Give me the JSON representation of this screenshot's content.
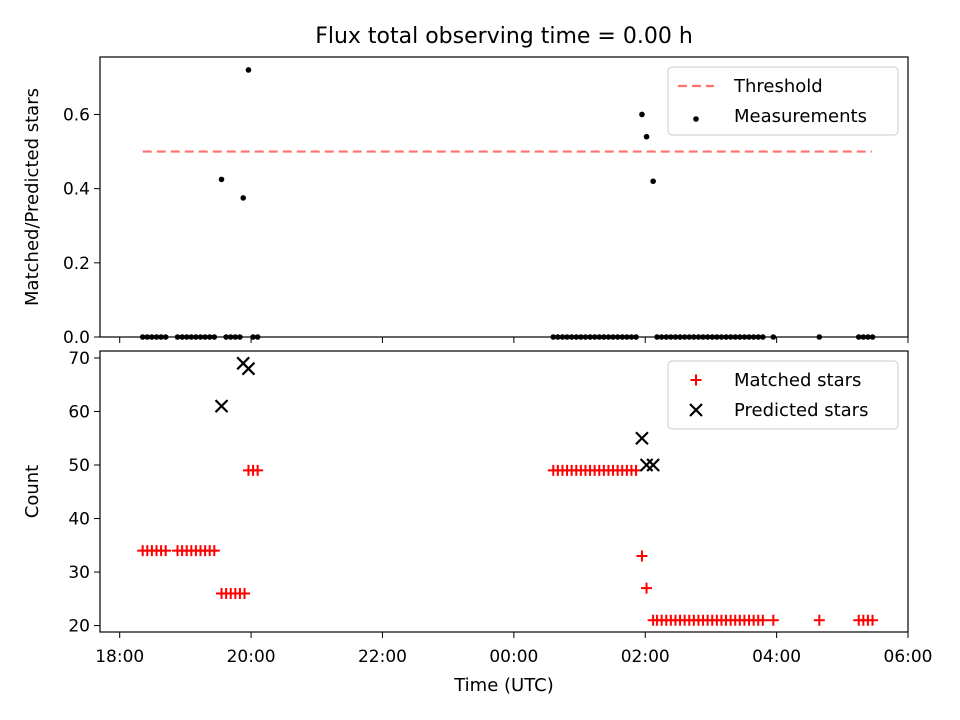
{
  "title": "Flux total observing time = 0.00 h",
  "x_axis_label": "Time (UTC)",
  "x_ticks": [
    "18:00",
    "20:00",
    "22:00",
    "00:00",
    "02:00",
    "04:00",
    "06:00"
  ],
  "x_tick_hours": [
    18,
    20,
    22,
    24,
    26,
    28,
    30
  ],
  "colors": {
    "threshold": "#ff7070",
    "measurements": "#000000",
    "matched": "#ff0000",
    "predicted": "#000000"
  },
  "chart_data": [
    {
      "type": "scatter",
      "panel": "top",
      "ylabel": "Matched/Predicted stars",
      "xlim_hours": [
        17.7,
        30.0
      ],
      "ylim": [
        0.0,
        0.755
      ],
      "y_ticks": [
        "0.0",
        "0.2",
        "0.4",
        "0.6"
      ],
      "y_tick_values": [
        0.0,
        0.2,
        0.4,
        0.6
      ],
      "legend_position": "top-right",
      "threshold": {
        "name": "Threshold",
        "value": 0.5,
        "x_range_hours": [
          18.35,
          29.45
        ],
        "style": "dashed line"
      },
      "series": [
        {
          "name": "Measurements",
          "marker": "dot",
          "points": [
            [
              18.35,
              0
            ],
            [
              18.42,
              0
            ],
            [
              18.49,
              0
            ],
            [
              18.56,
              0
            ],
            [
              18.63,
              0
            ],
            [
              18.7,
              0
            ],
            [
              18.88,
              0
            ],
            [
              18.95,
              0
            ],
            [
              19.02,
              0
            ],
            [
              19.09,
              0
            ],
            [
              19.16,
              0
            ],
            [
              19.23,
              0
            ],
            [
              19.3,
              0
            ],
            [
              19.37,
              0
            ],
            [
              19.44,
              0
            ],
            [
              19.55,
              0.425
            ],
            [
              19.62,
              0
            ],
            [
              19.69,
              0
            ],
            [
              19.76,
              0
            ],
            [
              19.83,
              0
            ],
            [
              19.88,
              0.375
            ],
            [
              19.96,
              0.72
            ],
            [
              20.03,
              0
            ],
            [
              20.1,
              0
            ],
            [
              24.6,
              0
            ],
            [
              24.67,
              0
            ],
            [
              24.74,
              0
            ],
            [
              24.81,
              0
            ],
            [
              24.88,
              0
            ],
            [
              24.95,
              0
            ],
            [
              25.02,
              0
            ],
            [
              25.09,
              0
            ],
            [
              25.16,
              0
            ],
            [
              25.23,
              0
            ],
            [
              25.3,
              0
            ],
            [
              25.37,
              0
            ],
            [
              25.44,
              0
            ],
            [
              25.51,
              0
            ],
            [
              25.58,
              0
            ],
            [
              25.65,
              0
            ],
            [
              25.72,
              0
            ],
            [
              25.79,
              0
            ],
            [
              25.86,
              0
            ],
            [
              25.95,
              0.6
            ],
            [
              26.02,
              0.54
            ],
            [
              26.12,
              0.42
            ],
            [
              26.18,
              0
            ],
            [
              26.25,
              0
            ],
            [
              26.32,
              0
            ],
            [
              26.39,
              0
            ],
            [
              26.46,
              0
            ],
            [
              26.53,
              0
            ],
            [
              26.6,
              0
            ],
            [
              26.67,
              0
            ],
            [
              26.74,
              0
            ],
            [
              26.81,
              0
            ],
            [
              26.88,
              0
            ],
            [
              26.95,
              0
            ],
            [
              27.02,
              0
            ],
            [
              27.09,
              0
            ],
            [
              27.16,
              0
            ],
            [
              27.23,
              0
            ],
            [
              27.3,
              0
            ],
            [
              27.37,
              0
            ],
            [
              27.44,
              0
            ],
            [
              27.51,
              0
            ],
            [
              27.58,
              0
            ],
            [
              27.65,
              0
            ],
            [
              27.72,
              0
            ],
            [
              27.79,
              0
            ],
            [
              27.95,
              0
            ],
            [
              28.65,
              0
            ],
            [
              29.25,
              0
            ],
            [
              29.32,
              0
            ],
            [
              29.39,
              0
            ],
            [
              29.46,
              0
            ]
          ]
        }
      ]
    },
    {
      "type": "scatter",
      "panel": "bottom",
      "ylabel": "Count",
      "xlabel": "Time (UTC)",
      "xlim_hours": [
        17.7,
        30.0
      ],
      "ylim": [
        18.8,
        71.3
      ],
      "y_ticks": [
        "20",
        "30",
        "40",
        "50",
        "60",
        "70"
      ],
      "y_tick_values": [
        20,
        30,
        40,
        50,
        60,
        70
      ],
      "legend_position": "top-right",
      "series": [
        {
          "name": "Matched stars",
          "marker": "plus",
          "points": [
            [
              18.35,
              34
            ],
            [
              18.42,
              34
            ],
            [
              18.49,
              34
            ],
            [
              18.56,
              34
            ],
            [
              18.63,
              34
            ],
            [
              18.7,
              34
            ],
            [
              18.88,
              34
            ],
            [
              18.95,
              34
            ],
            [
              19.02,
              34
            ],
            [
              19.09,
              34
            ],
            [
              19.16,
              34
            ],
            [
              19.23,
              34
            ],
            [
              19.3,
              34
            ],
            [
              19.37,
              34
            ],
            [
              19.44,
              34
            ],
            [
              19.55,
              26
            ],
            [
              19.62,
              26
            ],
            [
              19.69,
              26
            ],
            [
              19.76,
              26
            ],
            [
              19.83,
              26
            ],
            [
              19.9,
              26
            ],
            [
              19.96,
              49
            ],
            [
              20.03,
              49
            ],
            [
              20.1,
              49
            ],
            [
              24.6,
              49
            ],
            [
              24.67,
              49
            ],
            [
              24.74,
              49
            ],
            [
              24.81,
              49
            ],
            [
              24.88,
              49
            ],
            [
              24.95,
              49
            ],
            [
              25.02,
              49
            ],
            [
              25.09,
              49
            ],
            [
              25.16,
              49
            ],
            [
              25.23,
              49
            ],
            [
              25.3,
              49
            ],
            [
              25.37,
              49
            ],
            [
              25.44,
              49
            ],
            [
              25.51,
              49
            ],
            [
              25.58,
              49
            ],
            [
              25.65,
              49
            ],
            [
              25.72,
              49
            ],
            [
              25.79,
              49
            ],
            [
              25.86,
              49
            ],
            [
              25.95,
              33
            ],
            [
              26.02,
              27
            ],
            [
              26.12,
              21
            ],
            [
              26.18,
              21
            ],
            [
              26.25,
              21
            ],
            [
              26.32,
              21
            ],
            [
              26.39,
              21
            ],
            [
              26.46,
              21
            ],
            [
              26.53,
              21
            ],
            [
              26.6,
              21
            ],
            [
              26.67,
              21
            ],
            [
              26.74,
              21
            ],
            [
              26.81,
              21
            ],
            [
              26.88,
              21
            ],
            [
              26.95,
              21
            ],
            [
              27.02,
              21
            ],
            [
              27.09,
              21
            ],
            [
              27.16,
              21
            ],
            [
              27.23,
              21
            ],
            [
              27.3,
              21
            ],
            [
              27.37,
              21
            ],
            [
              27.44,
              21
            ],
            [
              27.51,
              21
            ],
            [
              27.58,
              21
            ],
            [
              27.65,
              21
            ],
            [
              27.72,
              21
            ],
            [
              27.79,
              21
            ],
            [
              27.95,
              21
            ],
            [
              28.65,
              21
            ],
            [
              29.25,
              21
            ],
            [
              29.32,
              21
            ],
            [
              29.39,
              21
            ],
            [
              29.46,
              21
            ]
          ]
        },
        {
          "name": "Predicted stars",
          "marker": "x",
          "points": [
            [
              19.55,
              61
            ],
            [
              19.88,
              69
            ],
            [
              19.96,
              68
            ],
            [
              25.95,
              55
            ],
            [
              26.02,
              50
            ],
            [
              26.12,
              50
            ]
          ]
        }
      ]
    }
  ]
}
